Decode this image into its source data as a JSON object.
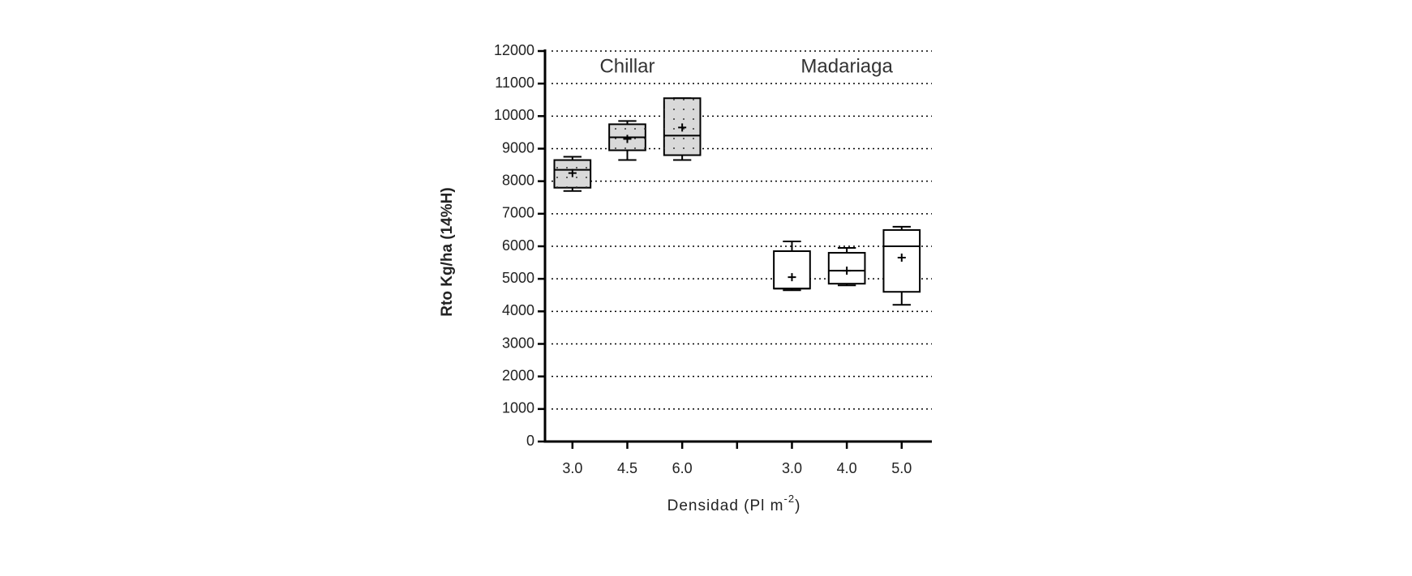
{
  "chart_data": {
    "type": "box",
    "y_label": "Rto Kg/ha (14%H)",
    "x_label": "Densidad (Pl m",
    "x_label_sup": "-2",
    "x_label_end": ")",
    "categories": [
      "3.0",
      "4.5",
      "6.0",
      null,
      "3.0",
      "4.0",
      "5.0"
    ],
    "ylim": [
      0,
      12000
    ],
    "yticks": [
      0,
      1000,
      2000,
      3000,
      4000,
      5000,
      6000,
      7000,
      8000,
      9000,
      10000,
      11000,
      12000
    ],
    "grid": true,
    "series": [
      {
        "name": "Chillar",
        "color": "#d9d9d9",
        "pattern": "dots",
        "min": [
          7700,
          8650,
          8650,
          null,
          null,
          null,
          null
        ],
        "q1": [
          7800,
          8950,
          8800,
          null,
          null,
          null,
          null
        ],
        "median": [
          8350,
          9350,
          9400,
          null,
          null,
          null,
          null
        ],
        "q3": [
          8650,
          9750,
          10550,
          null,
          null,
          null,
          null
        ],
        "max": [
          8750,
          9850,
          10550,
          null,
          null,
          null,
          null
        ],
        "mean": [
          8250,
          9300,
          9650,
          null,
          null,
          null,
          null
        ]
      },
      {
        "name": "Madariaga",
        "color": "#ffffff",
        "pattern": "none",
        "min": [
          null,
          null,
          null,
          null,
          4650,
          4800,
          4200
        ],
        "q1": [
          null,
          null,
          null,
          null,
          4700,
          4850,
          4600
        ],
        "median": [
          null,
          null,
          null,
          null,
          4700,
          5250,
          6000
        ],
        "q3": [
          null,
          null,
          null,
          null,
          5850,
          5800,
          6500
        ],
        "max": [
          null,
          null,
          null,
          null,
          6150,
          5950,
          6600
        ],
        "mean": [
          null,
          null,
          null,
          null,
          5050,
          5250,
          5650
        ]
      }
    ]
  }
}
